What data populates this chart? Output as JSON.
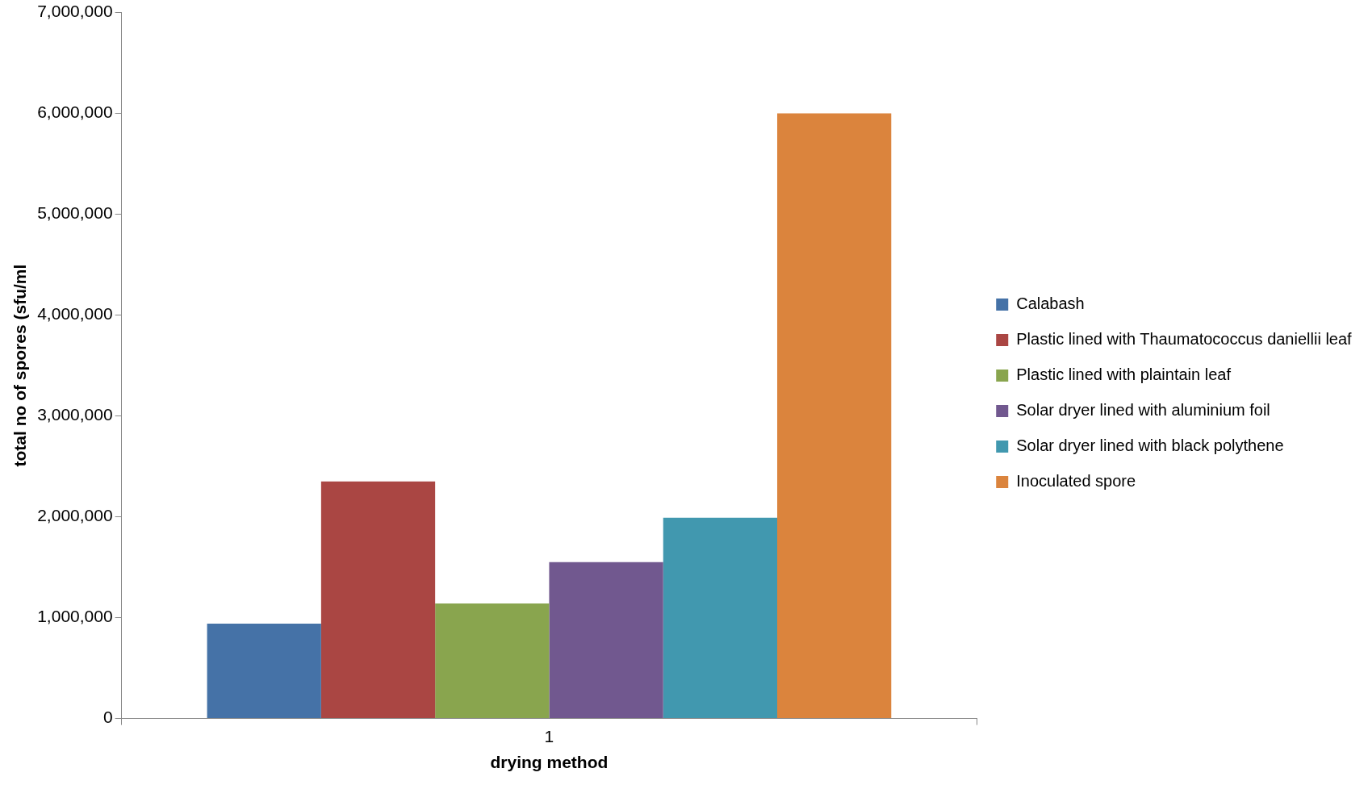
{
  "chart_data": {
    "type": "bar",
    "xlabel": "drying method",
    "ylabel": "total no of spores (sfu/ml",
    "categories": [
      "1"
    ],
    "series": [
      {
        "name": "Calabash",
        "color": "#4572a7",
        "values": [
          940000
        ]
      },
      {
        "name": "Plastic lined with Thaumatococcus daniellii leaf",
        "color": "#aa4643",
        "values": [
          2350000
        ]
      },
      {
        "name": "Plastic lined with plaintain leaf",
        "color": "#89a54e",
        "values": [
          1140000
        ]
      },
      {
        "name": "Solar dryer lined with aluminium foil",
        "color": "#71588f",
        "values": [
          1550000
        ]
      },
      {
        "name": "Solar dryer lined with black polythene",
        "color": "#4198af",
        "values": [
          1990000
        ]
      },
      {
        "name": "Inoculated spore",
        "color": "#db843d",
        "values": [
          6000000
        ]
      }
    ],
    "ylim": [
      0,
      7000000
    ],
    "yticks": [
      {
        "value": 0,
        "label": "0"
      },
      {
        "value": 1000000,
        "label": "1,000,000"
      },
      {
        "value": 2000000,
        "label": "2,000,000"
      },
      {
        "value": 3000000,
        "label": "3,000,000"
      },
      {
        "value": 4000000,
        "label": "4,000,000"
      },
      {
        "value": 5000000,
        "label": "5,000,000"
      },
      {
        "value": 6000000,
        "label": "6,000,000"
      },
      {
        "value": 7000000,
        "label": "7,000,000"
      }
    ],
    "grid": false,
    "legend": "right"
  }
}
